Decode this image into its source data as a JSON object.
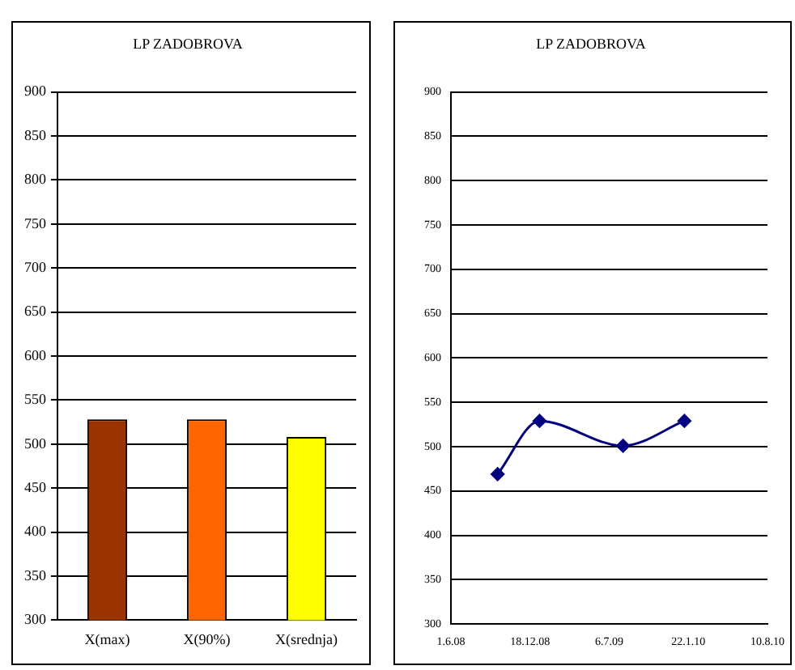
{
  "chart_data": [
    {
      "type": "bar",
      "title": "LP ZADOBROVA",
      "categories": [
        "X(max)",
        "X(90%)",
        "X(srednja)"
      ],
      "values": [
        528,
        528,
        508
      ],
      "colors": [
        "#993300",
        "#ff6600",
        "#ffff00"
      ],
      "ylim": [
        300,
        900
      ],
      "yticks": [
        300,
        350,
        400,
        450,
        500,
        550,
        600,
        650,
        700,
        750,
        800,
        850,
        900
      ],
      "grid": "y"
    },
    {
      "type": "line",
      "title": "LP ZADOBROVA",
      "x": [
        "2008-09-27",
        "2009-01-11",
        "2009-08-10",
        "2010-01-12"
      ],
      "values": [
        469,
        529,
        501,
        529
      ],
      "color": "#000080",
      "marker": "diamond",
      "xlim": [
        "2008-06-01",
        "2010-08-10"
      ],
      "xticks": [
        {
          "value": "2008-06-01",
          "label": "1.6.08"
        },
        {
          "value": "2008-12-18",
          "label": "18.12.08"
        },
        {
          "value": "2009-07-06",
          "label": "6.7.09"
        },
        {
          "value": "2010-01-22",
          "label": "22.1.10"
        },
        {
          "value": "2010-08-10",
          "label": "10.8.10"
        }
      ],
      "ylim": [
        300,
        900
      ],
      "yticks": [
        300,
        350,
        400,
        450,
        500,
        550,
        600,
        650,
        700,
        750,
        800,
        850,
        900
      ],
      "grid": "y"
    }
  ]
}
